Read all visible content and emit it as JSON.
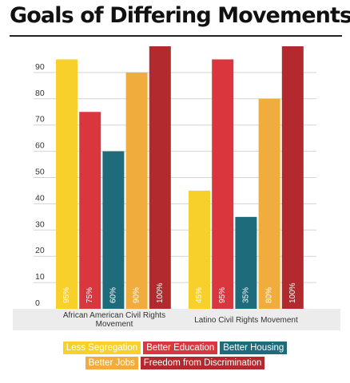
{
  "chart_data": {
    "type": "bar",
    "title": "Goals of Differing Movements",
    "categories": [
      "African American Civil Rights Movement",
      "Latino Civil Rights Movement"
    ],
    "category_label_lines": [
      [
        "African American Civil Rights",
        "Movement"
      ],
      [
        "Latino Civil Rights Movement"
      ]
    ],
    "series": [
      {
        "name": "Less Segregation",
        "color": "#f7d02c",
        "values": [
          95,
          45
        ],
        "labels": [
          "95%",
          "45%"
        ]
      },
      {
        "name": "Better Education",
        "color": "#d9363e",
        "values": [
          75,
          95
        ],
        "labels": [
          "75%",
          "95%"
        ]
      },
      {
        "name": "Better Housing",
        "color": "#1e6b7b",
        "values": [
          60,
          35
        ],
        "labels": [
          "60%",
          "35%"
        ]
      },
      {
        "name": "Better Jobs",
        "color": "#f0ad3e",
        "values": [
          90,
          80
        ],
        "labels": [
          "90%",
          "80%"
        ]
      },
      {
        "name": "Freedom from Discrimination",
        "color": "#b2292e",
        "values": [
          100,
          100
        ],
        "labels": [
          "100%",
          "100%"
        ]
      }
    ],
    "yticks": [
      "0",
      "10",
      "20",
      "30",
      "40",
      "50",
      "60",
      "70",
      "80",
      "90"
    ],
    "ylim": [
      0,
      100
    ],
    "grid": true,
    "legend_position": "bottom"
  },
  "legend_rows": [
    [
      0,
      1,
      2
    ],
    [
      3,
      4
    ]
  ]
}
